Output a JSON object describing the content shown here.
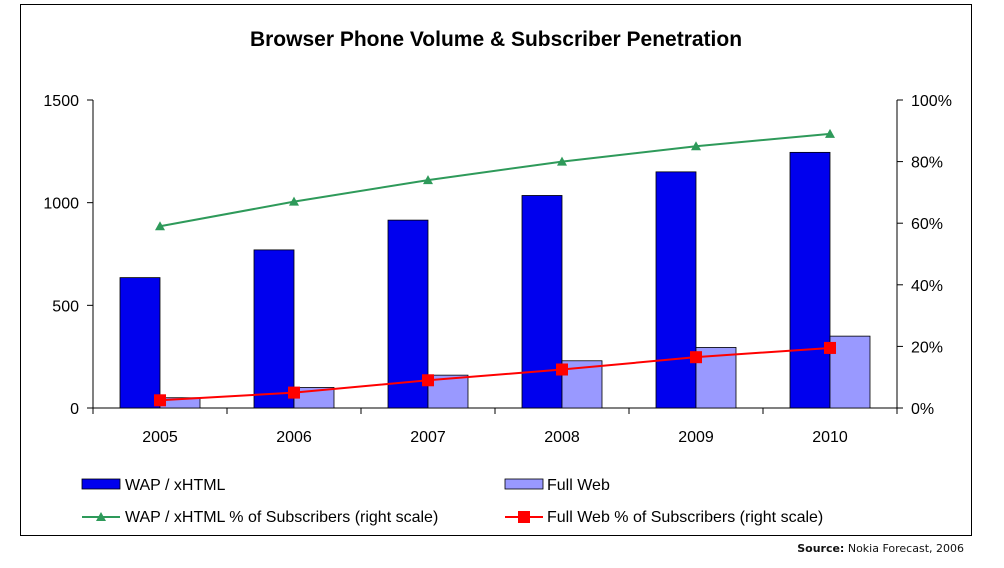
{
  "chart_data": {
    "type": "bar",
    "title": "Browser Phone Volume & Subscriber Penetration",
    "categories": [
      "2005",
      "2006",
      "2007",
      "2008",
      "2009",
      "2010"
    ],
    "left_axis": {
      "ylim": [
        0,
        1500
      ],
      "ticks": [
        "0",
        "500",
        "1000",
        "1500"
      ],
      "tick_values": [
        0,
        500,
        1000,
        1500
      ]
    },
    "right_axis": {
      "ylim": [
        0,
        100
      ],
      "ticks": [
        "0%",
        "20%",
        "40%",
        "60%",
        "80%",
        "100%"
      ],
      "tick_values": [
        0,
        20,
        40,
        60,
        80,
        100
      ]
    },
    "series": [
      {
        "name": "WAP / xHTML",
        "kind": "bar",
        "axis": "left",
        "color": "#0000ee",
        "values": [
          635,
          770,
          915,
          1035,
          1150,
          1245
        ]
      },
      {
        "name": "Full Web",
        "kind": "bar",
        "axis": "left",
        "color": "#9999ff",
        "values": [
          50,
          100,
          160,
          230,
          295,
          350
        ]
      },
      {
        "name": "WAP / xHTML % of Subscribers (right scale)",
        "kind": "line",
        "marker": "triangle",
        "axis": "right",
        "color": "#2e9a5a",
        "values": [
          59,
          67,
          74,
          80,
          85,
          89
        ]
      },
      {
        "name": "Full Web % of Subscribers (right scale)",
        "kind": "line",
        "marker": "square",
        "axis": "right",
        "color": "#ff0000",
        "values": [
          2.5,
          5,
          9,
          12.5,
          16.5,
          19.5
        ]
      }
    ],
    "grid": false,
    "legend_position": "bottom"
  },
  "source": {
    "label": "Source:",
    "text": "Nokia Forecast, 2006"
  }
}
